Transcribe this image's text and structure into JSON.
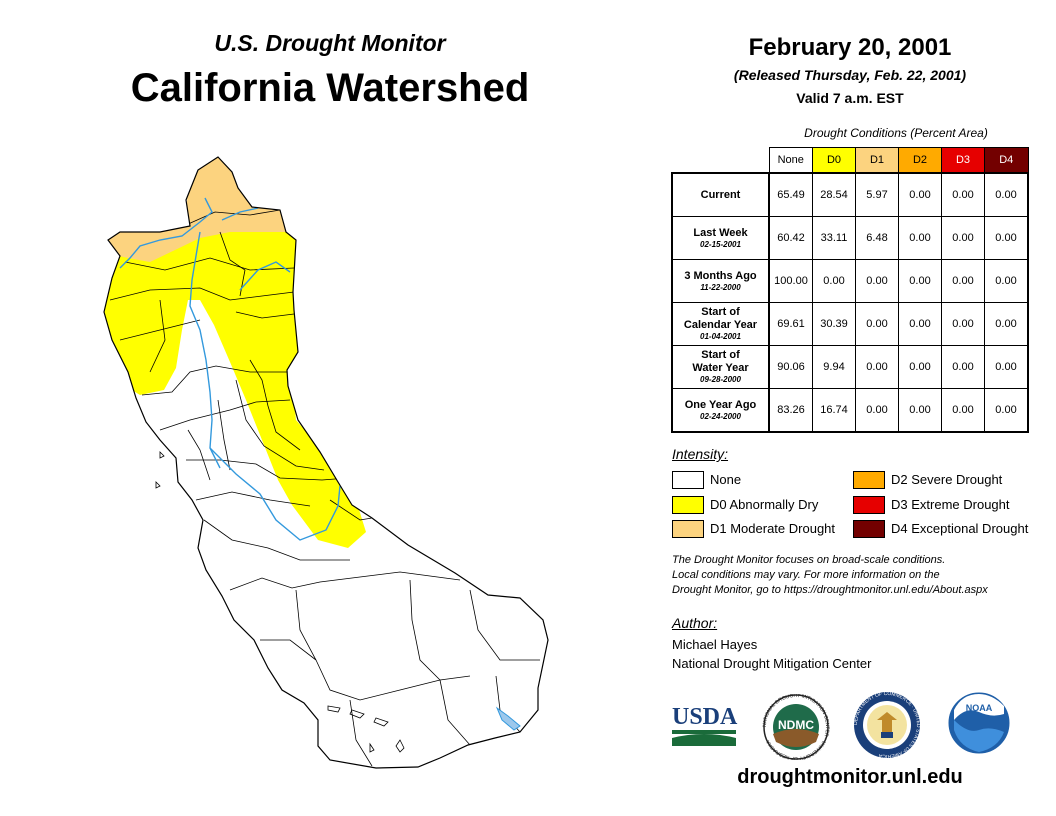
{
  "header": {
    "subtitle": "U.S. Drought Monitor",
    "title": "California Watershed",
    "date": "February 20, 2001",
    "released": "(Released Thursday, Feb. 22, 2001)",
    "valid": "Valid 7 a.m. EST"
  },
  "table": {
    "caption": "Drought Conditions (Percent Area)",
    "columns": [
      {
        "label": "None",
        "color": "#ffffff",
        "text_color": "#000000"
      },
      {
        "label": "D0",
        "color": "#ffff00",
        "text_color": "#000000"
      },
      {
        "label": "D1",
        "color": "#fcd37f",
        "text_color": "#000000"
      },
      {
        "label": "D2",
        "color": "#ffaa00",
        "text_color": "#000000"
      },
      {
        "label": "D3",
        "color": "#e60000",
        "text_color": "#ffffff"
      },
      {
        "label": "D4",
        "color": "#730000",
        "text_color": "#ffffff"
      }
    ],
    "rows": [
      {
        "label_lines": [
          "Current"
        ],
        "date": "",
        "values": [
          "65.49",
          "28.54",
          "5.97",
          "0.00",
          "0.00",
          "0.00"
        ]
      },
      {
        "label_lines": [
          "Last Week"
        ],
        "date": "02-15-2001",
        "values": [
          "60.42",
          "33.11",
          "6.48",
          "0.00",
          "0.00",
          "0.00"
        ]
      },
      {
        "label_lines": [
          "3 Months Ago"
        ],
        "date": "11-22-2000",
        "values": [
          "100.00",
          "0.00",
          "0.00",
          "0.00",
          "0.00",
          "0.00"
        ]
      },
      {
        "label_lines": [
          "Start of",
          "Calendar Year"
        ],
        "date": "01-04-2001",
        "values": [
          "69.61",
          "30.39",
          "0.00",
          "0.00",
          "0.00",
          "0.00"
        ]
      },
      {
        "label_lines": [
          "Start of",
          "Water Year"
        ],
        "date": "09-28-2000",
        "values": [
          "90.06",
          "9.94",
          "0.00",
          "0.00",
          "0.00",
          "0.00"
        ]
      },
      {
        "label_lines": [
          "One Year Ago"
        ],
        "date": "02-24-2000",
        "values": [
          "83.26",
          "16.74",
          "0.00",
          "0.00",
          "0.00",
          "0.00"
        ]
      }
    ]
  },
  "legend": {
    "title": "Intensity:",
    "items": [
      {
        "label": "None",
        "color": "#ffffff"
      },
      {
        "label": "D0 Abnormally Dry",
        "color": "#ffff00"
      },
      {
        "label": "D1 Moderate Drought",
        "color": "#fcd37f"
      },
      {
        "label": "D2 Severe Drought",
        "color": "#ffaa00"
      },
      {
        "label": "D3 Extreme Drought",
        "color": "#e60000"
      },
      {
        "label": "D4 Exceptional Drought",
        "color": "#730000"
      }
    ]
  },
  "note": {
    "lines": [
      "The Drought Monitor focuses on broad-scale conditions.",
      "Local conditions may vary. For more information on the",
      "Drought Monitor, go to https://droughtmonitor.unl.edu/About.aspx"
    ]
  },
  "author": {
    "label": "Author:",
    "name": "Michael Hayes",
    "org": "National Drought Mitigation Center"
  },
  "logos": {
    "usda": "USDA",
    "ndmc": "NDMC",
    "noaa": "NOAA",
    "ndmc_ring": "NATIONAL DROUGHT MITIGATION CENTER · UNIVERSITY OF NEBRASKA",
    "doc_ring": "DEPARTMENT OF COMMERCE · UNITED STATES OF AMERICA"
  },
  "website": "droughtmonitor.unl.edu",
  "map": {
    "colors": {
      "none": "#ffffff",
      "d0": "#ffff00",
      "d1": "#fcd37f",
      "river": "#3399dd",
      "border": "#000000"
    }
  }
}
